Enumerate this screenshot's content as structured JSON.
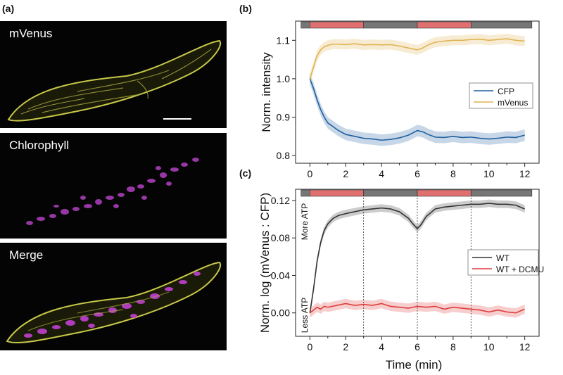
{
  "panel_labels": {
    "a": "(a)",
    "b": "(b)",
    "c": "(c)"
  },
  "micrographs": [
    {
      "label": "mVenus",
      "channel": "mVenus",
      "color": "#c8c84a"
    },
    {
      "label": "Chlorophyll",
      "channel": "chlorophyll",
      "color": "#c04ad0"
    },
    {
      "label": "Merge",
      "channel": "merge",
      "color": "#c8c84a"
    }
  ],
  "colors": {
    "light": "#e07070",
    "dark": "#777777",
    "cfp": "#1f5f9f",
    "mvenus": "#e0b450",
    "wt": "#333333",
    "dcmu": "#e03c3c"
  },
  "light_bar": [
    {
      "from": -0.5,
      "to": 0,
      "state": "dark"
    },
    {
      "from": 0,
      "to": 3,
      "state": "light"
    },
    {
      "from": 3,
      "to": 6,
      "state": "dark"
    },
    {
      "from": 6,
      "to": 9,
      "state": "light"
    },
    {
      "from": 9,
      "to": 12.4,
      "state": "dark"
    }
  ],
  "chart_data": [
    {
      "type": "line",
      "panel": "b",
      "xlabel": "",
      "ylabel": "Norm. intensity",
      "xlim": [
        -0.8,
        12.8
      ],
      "ylim": [
        0.78,
        1.15
      ],
      "xticks": [
        0,
        2,
        4,
        6,
        8,
        10,
        12
      ],
      "yticks": [
        0.8,
        0.9,
        1.0,
        1.1
      ],
      "ytick_labels": [
        "0.8",
        "0.9",
        "1.0",
        "1.1"
      ],
      "legend": [
        "CFP",
        "mVenus"
      ],
      "legend_position": "right",
      "series": [
        {
          "name": "CFP",
          "band": 0.015,
          "x": [
            0,
            0.2,
            0.4,
            0.6,
            0.8,
            1,
            1.3,
            1.6,
            2,
            2.5,
            3,
            3.5,
            4,
            4.5,
            5,
            5.5,
            6,
            6.3,
            6.6,
            7,
            7.5,
            8,
            8.5,
            9,
            9.5,
            10,
            10.5,
            11,
            11.5,
            12
          ],
          "values": [
            1.0,
            0.975,
            0.945,
            0.92,
            0.9,
            0.885,
            0.875,
            0.865,
            0.855,
            0.85,
            0.845,
            0.843,
            0.84,
            0.842,
            0.846,
            0.853,
            0.865,
            0.862,
            0.855,
            0.848,
            0.847,
            0.85,
            0.847,
            0.848,
            0.845,
            0.843,
            0.845,
            0.848,
            0.847,
            0.853
          ]
        },
        {
          "name": "mVenus",
          "band": 0.013,
          "x": [
            0,
            0.2,
            0.4,
            0.6,
            0.8,
            1,
            1.3,
            1.6,
            2,
            2.5,
            3,
            3.5,
            4,
            4.5,
            5,
            5.5,
            6,
            6.3,
            6.6,
            7,
            7.5,
            8,
            8.5,
            9,
            9.5,
            10,
            10.5,
            11,
            11.5,
            12
          ],
          "values": [
            1.0,
            1.03,
            1.06,
            1.075,
            1.083,
            1.087,
            1.09,
            1.09,
            1.089,
            1.091,
            1.088,
            1.089,
            1.088,
            1.089,
            1.085,
            1.08,
            1.075,
            1.08,
            1.088,
            1.095,
            1.098,
            1.1,
            1.1,
            1.102,
            1.103,
            1.1,
            1.102,
            1.104,
            1.1,
            1.098
          ]
        }
      ]
    },
    {
      "type": "line",
      "panel": "c",
      "xlabel": "Time (min)",
      "ylabel": "Norm. log (mVenus : CFP)",
      "xlim": [
        -0.8,
        12.8
      ],
      "ylim": [
        -0.025,
        0.132
      ],
      "xticks": [
        0,
        2,
        4,
        6,
        8,
        10,
        12
      ],
      "yticks": [
        0.0,
        0.04,
        0.08,
        0.12
      ],
      "ytick_labels": [
        "0.00",
        "0.04",
        "0.08",
        "0.12"
      ],
      "vlines": [
        3,
        6,
        9
      ],
      "annotations": [
        "More ATP",
        "Less ATP"
      ],
      "legend": [
        "WT",
        "WT + DCMU"
      ],
      "legend_position": "right",
      "series": [
        {
          "name": "WT",
          "band": 0.004,
          "x": [
            0,
            0.2,
            0.4,
            0.6,
            0.8,
            1,
            1.3,
            1.6,
            2,
            2.5,
            3,
            3.5,
            4,
            4.5,
            5,
            5.5,
            5.8,
            6,
            6.2,
            6.5,
            7,
            7.5,
            8,
            8.5,
            9,
            9.5,
            10,
            10.5,
            11,
            11.5,
            12
          ],
          "values": [
            0.0,
            0.025,
            0.055,
            0.075,
            0.088,
            0.095,
            0.101,
            0.104,
            0.106,
            0.108,
            0.11,
            0.111,
            0.112,
            0.111,
            0.108,
            0.101,
            0.094,
            0.09,
            0.094,
            0.103,
            0.111,
            0.113,
            0.114,
            0.115,
            0.116,
            0.116,
            0.117,
            0.116,
            0.116,
            0.115,
            0.111
          ]
        },
        {
          "name": "WT + DCMU",
          "band": 0.005,
          "x": [
            0,
            0.2,
            0.4,
            0.6,
            0.8,
            1,
            1.5,
            2,
            2.5,
            3,
            3.5,
            4,
            4.5,
            5,
            5.5,
            6,
            6.5,
            7,
            7.5,
            8,
            8.5,
            9,
            9.5,
            10,
            10.5,
            11,
            11.5,
            12
          ],
          "values": [
            0.0,
            0.003,
            0.006,
            0.004,
            0.007,
            0.006,
            0.008,
            0.01,
            0.008,
            0.009,
            0.008,
            0.01,
            0.007,
            0.006,
            0.005,
            0.007,
            0.006,
            0.007,
            0.004,
            0.006,
            0.005,
            0.004,
            0.003,
            0.001,
            0.003,
            0.001,
            0.0,
            0.004
          ]
        }
      ]
    }
  ]
}
